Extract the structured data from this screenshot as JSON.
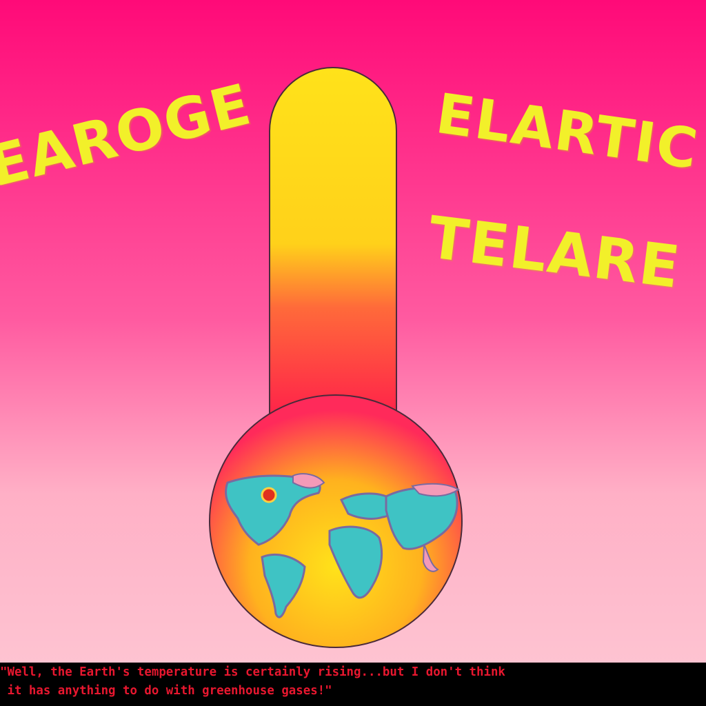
{
  "colors": {
    "background_top": "#ff0a78",
    "background_bottom": "#fdc8d4",
    "text_yellow": "#f2f02a",
    "tube_top": "#ffe21a",
    "tube_bottom": "#ff1f4a",
    "bulb_center": "#ffe21a",
    "bulb_edge": "#ff2a5a",
    "caption_text": "#e8172f",
    "caption_bar": "#000000"
  },
  "words": {
    "left": "EAROGE",
    "right_top": "ELARTIC",
    "right_bottom": "TELARE"
  },
  "caption": {
    "line1": "\"Well, the Earth's temperature is certainly rising...but I don't think",
    "line2": " it has anything to do with greenhouse gases!\""
  }
}
